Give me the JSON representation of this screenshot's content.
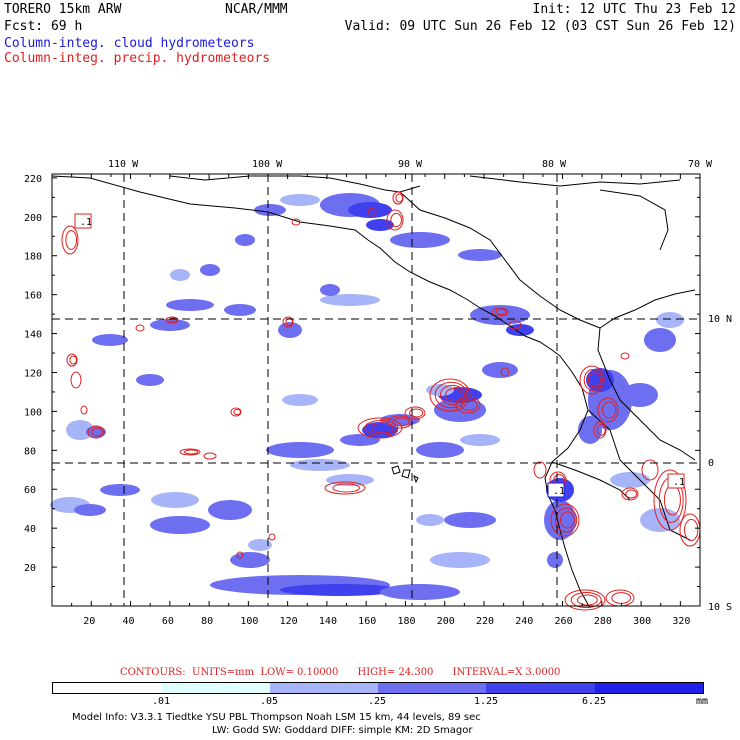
{
  "header": {
    "model": "TORERO  15km ARW",
    "org": "NCAR/MMM",
    "init": "Init: 12 UTC Thu 23 Feb 12",
    "fcst": "Fcst:   69 h",
    "valid": "Valid: 09 UTC Sun 26 Feb 12 (03 CST Sun 26 Feb 12)",
    "field_cloud": "Column-integ. cloud hydrometeors",
    "field_precip": "Column-integ. precip. hydrometeors"
  },
  "colors": {
    "cloud_fill_levels": [
      "#e0ffff",
      "#a8b4f8",
      "#6e6ef0",
      "#4040ee",
      "#2020e8"
    ],
    "precip_contour": "#e02020",
    "coastline": "#000000"
  },
  "axes": {
    "longitude_labels": [
      "110 W",
      "100 W",
      "90 W",
      "80 W",
      "70 W"
    ],
    "latitude_labels": [
      "10 N",
      "0",
      "10 S"
    ],
    "x_ticks": [
      "20",
      "40",
      "60",
      "80",
      "100",
      "120",
      "140",
      "160",
      "180",
      "200",
      "220",
      "240",
      "260",
      "280",
      "300",
      "320"
    ],
    "y_ticks": [
      "20",
      "40",
      "60",
      "80",
      "100",
      "120",
      "140",
      "160",
      "180",
      "200",
      "220"
    ]
  },
  "contours": {
    "label": "CONTOURS:",
    "units": "UNITS=mm",
    "low": "LOW= 0.10000",
    "high": "HIGH=  24.300",
    "interval": "INTERVAL=X  3.0000"
  },
  "legend": {
    "thresholds": [
      ".01",
      ".05",
      ".25",
      "1.25",
      "6.25"
    ],
    "unit": "mm"
  },
  "model_info": {
    "line1": "Model Info: V3.3.1    Tiedtke YSU PBL  Thompson     Noah LSM  15 km,   44 levels,   89 sec",
    "line2": "LW: Godd SW: Goddard DIFF: simple KM: 2D Smagor"
  },
  "labels": {
    "boxes": [
      ".1",
      ".1",
      ".1"
    ]
  }
}
